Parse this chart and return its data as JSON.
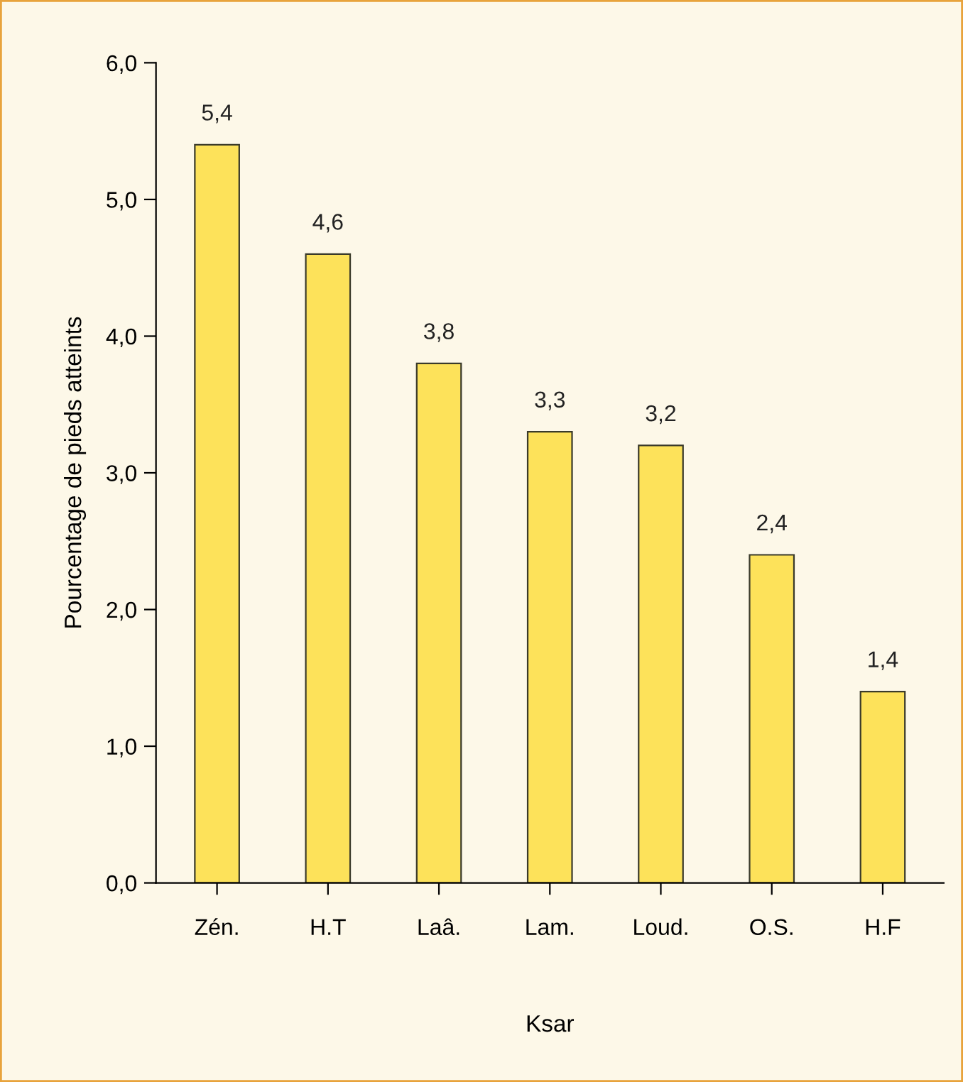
{
  "chart_data": {
    "type": "bar",
    "xlabel": "Ksar",
    "ylabel": "Pourcentage de pieds atteints",
    "categories": [
      "Zén.",
      "H.T",
      "Laâ.",
      "Lam.",
      "Loud.",
      "O.S.",
      "H.F"
    ],
    "values": [
      5.4,
      4.6,
      3.8,
      3.3,
      3.2,
      2.4,
      1.4
    ],
    "value_labels": [
      "5,4",
      "4,6",
      "3,8",
      "3,3",
      "3,2",
      "2,4",
      "1,4"
    ],
    "color": "#fde25a",
    "ylim": [
      0,
      6
    ],
    "yticks": [
      {
        "value": 0,
        "label": "0,0"
      },
      {
        "value": 1,
        "label": "1,0"
      },
      {
        "value": 2,
        "label": "2,0"
      },
      {
        "value": 3,
        "label": "3,0"
      },
      {
        "value": 4,
        "label": "4,0"
      },
      {
        "value": 5,
        "label": "5,0"
      },
      {
        "value": 6,
        "label": "6,0"
      }
    ],
    "grid": false
  }
}
